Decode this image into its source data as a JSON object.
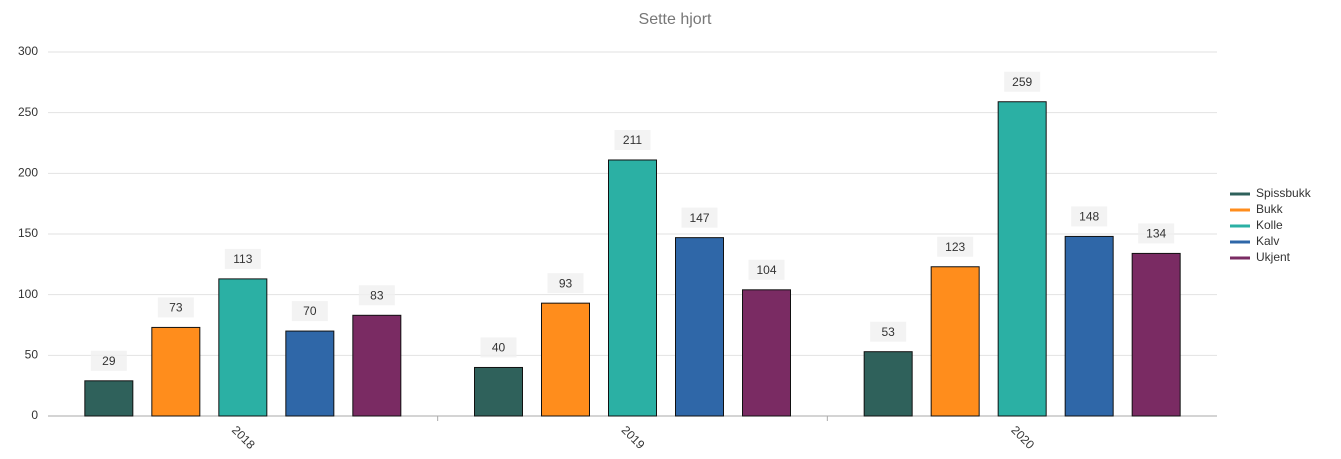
{
  "chart_data": {
    "type": "bar",
    "title": "Sette hjort",
    "categories": [
      "2018",
      "2019",
      "2020"
    ],
    "series": [
      {
        "name": "Spissbukk",
        "color": "#2f615b",
        "values": [
          29,
          40,
          53
        ]
      },
      {
        "name": "Bukk",
        "color": "#ff8d1c",
        "values": [
          73,
          93,
          123
        ]
      },
      {
        "name": "Kolle",
        "color": "#2bb0a4",
        "values": [
          113,
          211,
          259
        ]
      },
      {
        "name": "Kalv",
        "color": "#2f67a8",
        "values": [
          70,
          147,
          148
        ]
      },
      {
        "name": "Ukjent",
        "color": "#7a2b63",
        "values": [
          83,
          104,
          134
        ]
      }
    ],
    "ylim": [
      0,
      300
    ],
    "yticks": [
      0,
      50,
      100,
      150,
      200,
      250,
      300
    ],
    "grid": true,
    "legend": "right"
  }
}
